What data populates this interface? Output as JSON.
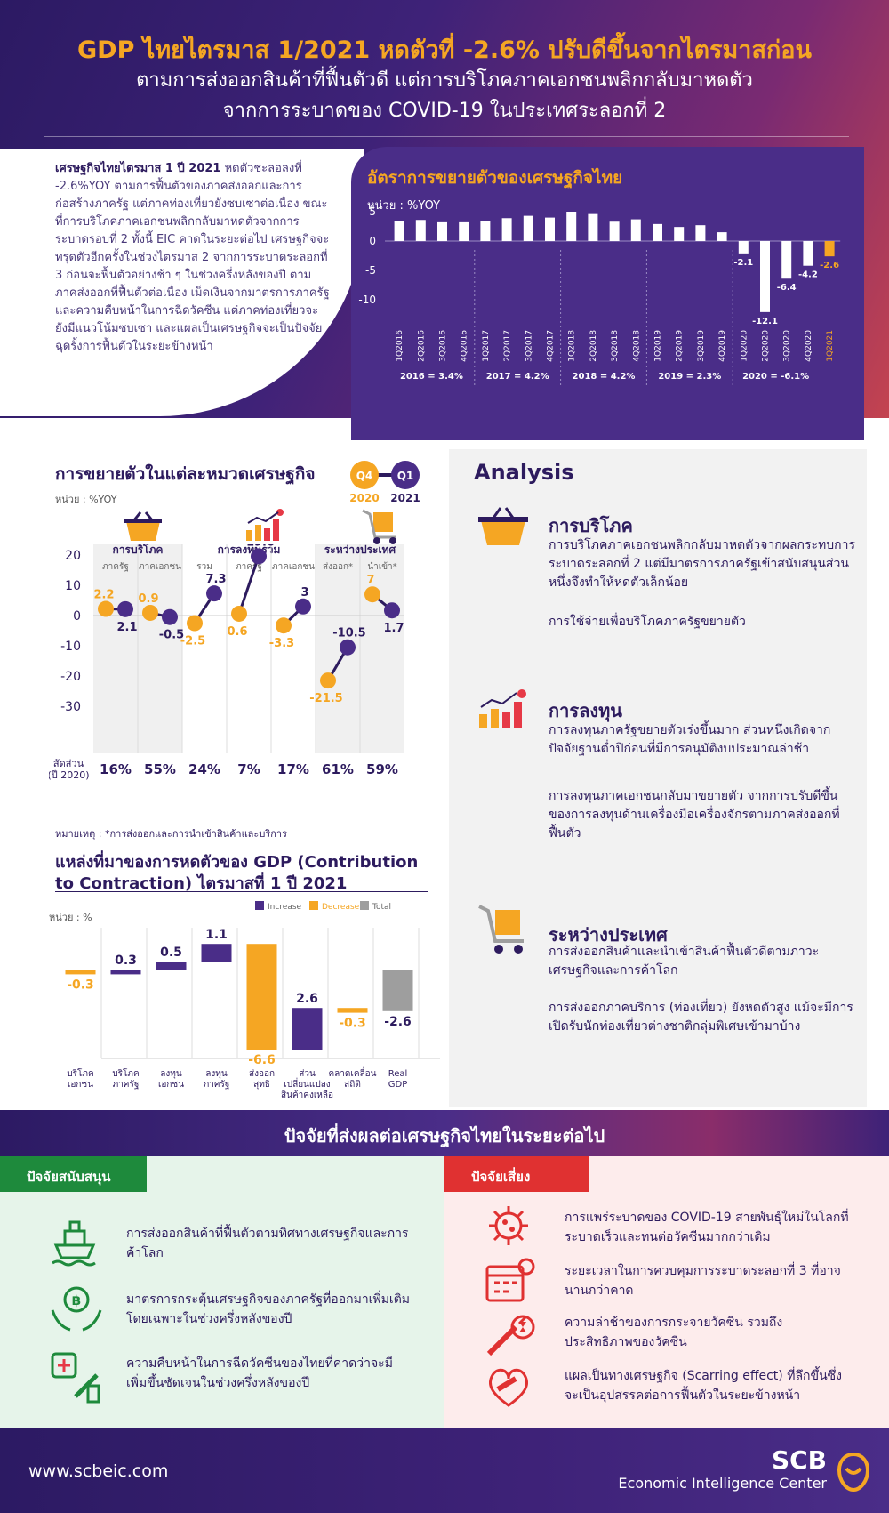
{
  "header": {
    "title": "GDP ไทยไตรมาส 1/2021 หดตัวที่ -2.6% ปรับดีขึ้นจากไตรมาสก่อน",
    "subtitle1": "ตามการส่งออกสินค้าที่ฟื้นตัวดี แต่การบริโภคภาคเอกชนพลิกกลับมาหดตัว",
    "subtitle2": "จากการระบาดของ COVID-19 ในประเทศระลอกที่ 2"
  },
  "intro": {
    "bold": "เศรษฐกิจไทยไตรมาส 1 ปี 2021",
    "text": " หดตัวชะลอลงที่ -2.6%YOY ตามการฟื้นตัวของภาคส่งออกและการก่อสร้างภาครัฐ แต่ภาคท่องเที่ยวยังซบเซาต่อเนื่อง ขณะที่การบริโภคภาคเอกชนพลิกกลับมาหดตัวจากการระบาดรอบที่ 2 ทั้งนี้ EIC คาดในระยะต่อไป เศรษฐกิจจะทรุดตัวอีกครั้งในช่วงไตรมาส 2 จากการระบาดระลอกที่ 3 ก่อนจะฟื้นตัวอย่างช้า ๆ ในช่วงครึ่งหลังของปี ตามภาคส่งออกที่ฟื้นตัวต่อเนื่อง เม็ดเงินจากมาตรการภาครัฐ และความคืบหน้าในการฉีดวัคซีน แต่ภาคท่องเที่ยวจะยังมีแนวโน้มซบเซา และแผลเป็นเศรษฐกิจจะเป็นปัจจัยฉุดรั้งการฟื้นตัวในระยะข้างหน้า"
  },
  "gdp_chart": {
    "title": "อัตราการขยายตัวของเศรษฐกิจไทย",
    "unit": "หน่วย : %YOY"
  },
  "sector_chart": {
    "title": "การขยายตัวในแต่ละหมวดเศรษฐกิจ",
    "unit": "หน่วย : %YOY",
    "q4": "Q4",
    "q4y": "2020",
    "q1": "Q1",
    "q1y": "2021",
    "groups": [
      "การบริโภค",
      "การลงทุนรวม",
      "ระหว่างประเทศ"
    ],
    "share_label1": "สัดส่วน",
    "share_label2": "(ปี 2020)",
    "note": "หมายเหตุ : *การส่งออกและการนำเข้าสินค้าและบริการ"
  },
  "contrib_chart": {
    "title1": "แหล่งที่มาของการหดตัวของ GDP (Contribution",
    "title2": "to Contraction) ไตรมาสที่ 1 ปี 2021",
    "unit": "หน่วย : %",
    "legend": [
      "Increase",
      "Decrease",
      "Total"
    ]
  },
  "analysis": {
    "title": "Analysis",
    "consumption_h": "การบริโภค",
    "consumption_p1": "การบริโภคภาคเอกชนพลิกกลับมาหดตัวจากผลกระทบการระบาดระลอกที่ 2 แต่มีมาตรการภาครัฐเข้าสนับสนุนส่วนหนึ่งจึงทำให้หดตัวเล็กน้อย",
    "consumption_p2": "การใช้จ่ายเพื่อบริโภคภาครัฐขยายตัว",
    "invest_h": "การลงทุน",
    "invest_p1": "การลงทุนภาครัฐขยายตัวเร่งขึ้นมาก ส่วนหนึ่งเกิดจากปัจจัยฐานต่ำปีก่อนที่มีการอนุมัติงบประมาณล่าช้า",
    "invest_p2": "การลงทุนภาคเอกชนกลับมาขยายตัว จากการปรับดีขึ้นของการลงทุนด้านเครื่องมือเครื่องจักรตามภาคส่งออกที่ฟื้นตัว",
    "intl_h": "ระหว่างประเทศ",
    "intl_p1": "การส่งออกสินค้าและนำเข้าสินค้าฟื้นตัวดีตามภาวะเศรษฐกิจและการค้าโลก",
    "intl_p2": "การส่งออกภาคบริการ (ท่องเที่ยว) ยังหดตัวสูง แม้จะมีการเปิดรับนักท่องเที่ยวต่างชาติกลุ่มพิเศษเข้ามาบ้าง"
  },
  "factors": {
    "title": "ปัจจัยที่ส่งผลต่อเศรษฐกิจไทยในระยะต่อไป",
    "support_tag": "ปัจจัยสนับสนุน",
    "risk_tag": "ปัจจัยเสี่ยง",
    "support": [
      "การส่งออกสินค้าที่ฟื้นตัวตามทิศทางเศรษฐกิจและการค้าโลก",
      "มาตรการกระตุ้นเศรษฐกิจของภาครัฐที่ออกมาเพิ่มเติมโดยเฉพาะในช่วงครึ่งหลังของปี",
      "ความคืบหน้าในการฉีดวัคซีนของไทยที่คาดว่าจะมีเพิ่มขึ้นชัดเจนในช่วงครึ่งหลังของปี"
    ],
    "risk": [
      "การแพร่ระบาดของ COVID-19 สายพันธุ์ใหม่ในโลกที่ระบาดเร็วและทนต่อวัคซีนมากกว่าเดิม",
      "ระยะเวลาในการควบคุมการระบาดระลอกที่ 3 ที่อาจนานกว่าคาด",
      "ความล่าช้าของการกระจายวัคซีน รวมถึงประสิทธิภาพของวัคซีน",
      "แผลเป็นทางเศรษฐกิจ (Scarring effect) ที่ลึกขึ้นซึ่งจะเป็นอุปสรรคต่อการฟื้นตัวในระยะข้างหน้า"
    ]
  },
  "footer": {
    "url": "www.scbeic.com",
    "brand": "SCB",
    "brand_sub": "Economic Intelligence Center"
  },
  "colors": {
    "purple": "#4a2d88",
    "orange": "#f5a623",
    "gray": "#9e9e9e",
    "dark": "#2d1b5e"
  },
  "chart_data": [
    {
      "type": "bar",
      "title": "อัตราการขยายตัวของเศรษฐกิจไทย",
      "ylabel": "หน่วย : %YOY",
      "ylim": [
        -13,
        6
      ],
      "yticks": [
        5,
        0,
        -5,
        -10
      ],
      "categories": [
        "1Q2016",
        "2Q2016",
        "3Q2016",
        "4Q2016",
        "1Q2017",
        "2Q2017",
        "3Q2017",
        "4Q2017",
        "1Q2018",
        "2Q2018",
        "3Q2018",
        "4Q2018",
        "1Q2019",
        "2Q2019",
        "3Q2019",
        "4Q2019",
        "1Q2020",
        "2Q2020",
        "3Q2020",
        "4Q2020",
        "1Q2021"
      ],
      "values": [
        3.4,
        3.6,
        3.2,
        3.2,
        3.4,
        3.9,
        4.3,
        4.0,
        5.0,
        4.6,
        3.3,
        3.7,
        2.9,
        2.4,
        2.7,
        1.5,
        -2.1,
        -12.1,
        -6.4,
        -4.2,
        -2.6
      ],
      "value_labels": {
        "16": "-2.1",
        "17": "-12.1",
        "18": "-6.4",
        "19": "-4.2",
        "20": "-2.6"
      },
      "annual": [
        "2016 = 3.4%",
        "2017 = 4.2%",
        "2018 = 4.2%",
        "2019 = 2.3%",
        "2020 = -6.1%"
      ]
    },
    {
      "type": "dumbbell",
      "title": "การขยายตัวในแต่ละหมวดเศรษฐกิจ",
      "ylim": [
        -30,
        20
      ],
      "yticks": [
        20,
        10,
        0,
        -10,
        -20,
        -30
      ],
      "categories": [
        "ภาครัฐ",
        "ภาคเอกชน",
        "รวม",
        "ภาครัฐ",
        "ภาคเอกชน",
        "ส่งออก*",
        "นำเข้า*"
      ],
      "series": [
        {
          "name": "Q4 2020",
          "values": [
            2.2,
            0.9,
            -2.5,
            0.6,
            -3.3,
            -21.5,
            7.0
          ]
        },
        {
          "name": "Q1 2021",
          "values": [
            2.1,
            -0.5,
            7.3,
            19.6,
            3.0,
            -10.5,
            1.7
          ]
        }
      ],
      "share_2020": [
        "16%",
        "55%",
        "24%",
        "7%",
        "17%",
        "61%",
        "59%"
      ]
    },
    {
      "type": "waterfall",
      "title": "แหล่งที่มาของการหดตัวของ GDP (Contribution to Contraction) ไตรมาสที่ 1 ปี 2021",
      "ylabel": "หน่วย : %",
      "categories": [
        "บริโภค เอกชน",
        "บริโภค ภาครัฐ",
        "ลงทุน เอกชน",
        "ลงทุน ภาครัฐ",
        "ส่งออก สุทธิ",
        "ส่วน เปลี่ยนแปลง สินค้าคงเหลือ",
        "คลาดเคลื่อน สถิติ",
        "Real GDP"
      ],
      "values": [
        -0.3,
        0.3,
        0.5,
        1.1,
        -6.6,
        2.6,
        -0.3,
        -2.6
      ],
      "kind": [
        "decrease",
        "increase",
        "increase",
        "increase",
        "decrease",
        "increase",
        "decrease",
        "total"
      ]
    }
  ]
}
